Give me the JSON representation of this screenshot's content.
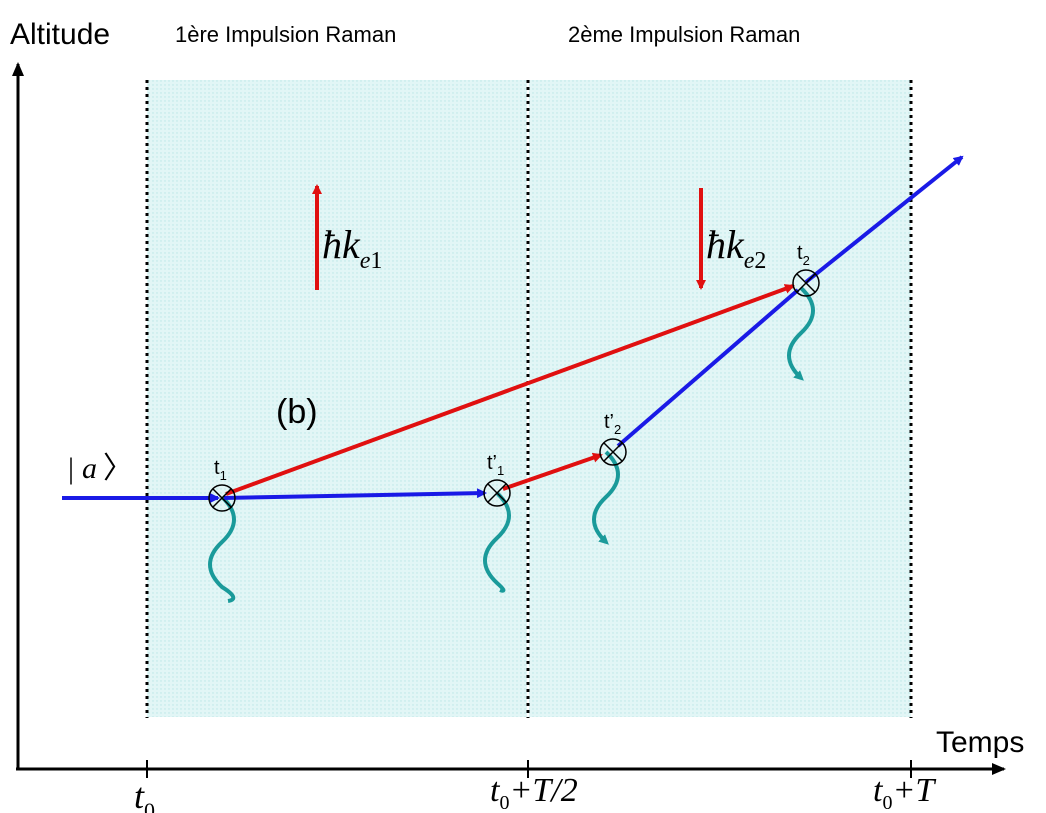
{
  "axes": {
    "y_label": "Altitude",
    "x_label": "Temps"
  },
  "pulses": {
    "first": "1ère Impulsion Raman",
    "second": "2ème Impulsion Raman"
  },
  "momentum": {
    "first": {
      "hbar": "ħ",
      "k": "k",
      "sub": "e",
      "index": "1"
    },
    "second": {
      "hbar": "ħ",
      "k": "k",
      "sub": "e",
      "index": "2"
    }
  },
  "path_label": "(b)",
  "state": {
    "bar": "|",
    "letter": "a",
    "bracket": "〉"
  },
  "events": {
    "t1": {
      "base": "t",
      "sub": "1"
    },
    "t1p": {
      "base": "t’",
      "sub": "1"
    },
    "t2p": {
      "base": "t’",
      "sub": "2"
    },
    "t2": {
      "base": "t",
      "sub": "2"
    }
  },
  "ticks": {
    "t0": {
      "base": "t",
      "sub": "0"
    },
    "mid": {
      "base": "t",
      "sub": "0",
      "rest": "+T/2"
    },
    "end": {
      "base": "t",
      "sub": "0",
      "rest": "+T"
    }
  },
  "colors": {
    "laser_region": "#d9f3f3",
    "upper_path": "#e01010",
    "lower_path": "#1a1ae6",
    "photon": "#1a9a9a",
    "axis": "#000000"
  }
}
